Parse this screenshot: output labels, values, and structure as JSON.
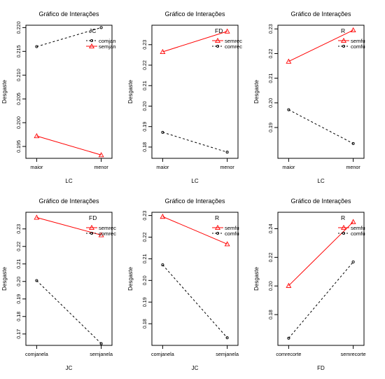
{
  "chart_data": [
    {
      "type": "line",
      "title": "Gráfico de Interações",
      "xlabel": "LC",
      "ylabel": "Desgaste",
      "categories": [
        "maior",
        "menor"
      ],
      "ylim": [
        0.1925,
        0.2205
      ],
      "yticks": [
        "0.195",
        "0.200",
        "0.205",
        "0.210",
        "0.215",
        "0.220"
      ],
      "legend": {
        "title": "JC",
        "position": "top-right",
        "labels": [
          "comjan",
          "semjan"
        ]
      },
      "series": [
        {
          "name": "comjan",
          "values": [
            0.216,
            0.22
          ],
          "color": "#000000",
          "style": "dashed-circle"
        },
        {
          "name": "semjan",
          "values": [
            0.1972,
            0.1932
          ],
          "color": "#ff0000",
          "style": "solid-triangle"
        }
      ]
    },
    {
      "type": "line",
      "title": "Gráfico de Interações",
      "xlabel": "LC",
      "ylabel": "Desgaste",
      "categories": [
        "maior",
        "menor"
      ],
      "ylim": [
        0.1745,
        0.2395
      ],
      "yticks": [
        "0.18",
        "0.19",
        "0.20",
        "0.21",
        "0.22",
        "0.23"
      ],
      "legend": {
        "title": "FD",
        "position": "top-right",
        "labels": [
          "semrec",
          "comrec"
        ]
      },
      "series": [
        {
          "name": "semrec",
          "values": [
            0.2265,
            0.2365
          ],
          "color": "#ff0000",
          "style": "solid-triangle"
        },
        {
          "name": "comrec",
          "values": [
            0.1872,
            0.1775
          ],
          "color": "#000000",
          "style": "dashed-circle"
        }
      ]
    },
    {
      "type": "line",
      "title": "Gráfico de Interações",
      "xlabel": "LC",
      "ylabel": "Desgaste",
      "categories": [
        "maior",
        "menor"
      ],
      "ylim": [
        0.1775,
        0.2315
      ],
      "yticks": [
        "0.19",
        "0.20",
        "0.21",
        "0.22",
        "0.23"
      ],
      "legend": {
        "title": "R",
        "position": "top-right",
        "labels": [
          "semfu",
          "comfu"
        ]
      },
      "series": [
        {
          "name": "semfu",
          "values": [
            0.2168,
            0.2295
          ],
          "color": "#ff0000",
          "style": "solid-triangle"
        },
        {
          "name": "comfu",
          "values": [
            0.1972,
            0.1835
          ],
          "color": "#000000",
          "style": "dashed-circle"
        }
      ]
    },
    {
      "type": "line",
      "title": "Gráfico de Interações",
      "xlabel": "JC",
      "ylabel": "Desgaste",
      "categories": [
        "comjanela",
        "semjanela"
      ],
      "ylim": [
        0.1635,
        0.2395
      ],
      "yticks": [
        "0.17",
        "0.18",
        "0.19",
        "0.20",
        "0.21",
        "0.22",
        "0.23"
      ],
      "legend": {
        "title": "FD",
        "position": "top-right",
        "labels": [
          "semrec",
          "comrec"
        ]
      },
      "series": [
        {
          "name": "semrec",
          "values": [
            0.2365,
            0.2265
          ],
          "color": "#ff0000",
          "style": "solid-triangle"
        },
        {
          "name": "comrec",
          "values": [
            0.2005,
            0.1645
          ],
          "color": "#000000",
          "style": "dashed-circle"
        }
      ]
    },
    {
      "type": "line",
      "title": "Gráfico de Interações",
      "xlabel": "JC",
      "ylabel": "Desgaste",
      "categories": [
        "comjanela",
        "semjanela"
      ],
      "ylim": [
        0.17,
        0.2315
      ],
      "yticks": [
        "0.18",
        "0.19",
        "0.20",
        "0.21",
        "0.22",
        "0.23"
      ],
      "legend": {
        "title": "R",
        "position": "top-right",
        "labels": [
          "semfu",
          "comfu"
        ]
      },
      "series": [
        {
          "name": "semfu",
          "values": [
            0.2295,
            0.2168
          ],
          "color": "#ff0000",
          "style": "solid-triangle"
        },
        {
          "name": "comfu",
          "values": [
            0.2072,
            0.1735
          ],
          "color": "#000000",
          "style": "dashed-circle"
        }
      ]
    },
    {
      "type": "line",
      "title": "Gráfico de Interações",
      "xlabel": "FD",
      "ylabel": "Desgaste",
      "categories": [
        "comrecorte",
        "semrecorte"
      ],
      "ylim": [
        0.1585,
        0.2515
      ],
      "yticks": [
        "0.18",
        "0.20",
        "0.22",
        "0.24"
      ],
      "legend": {
        "title": "R",
        "position": "top-right",
        "labels": [
          "semfu",
          "comfu"
        ]
      },
      "series": [
        {
          "name": "semfu",
          "values": [
            0.2002,
            0.2448
          ],
          "color": "#ff0000",
          "style": "solid-triangle"
        },
        {
          "name": "comfu",
          "values": [
            0.1635,
            0.2168
          ],
          "color": "#000000",
          "style": "dashed-circle"
        }
      ]
    }
  ]
}
